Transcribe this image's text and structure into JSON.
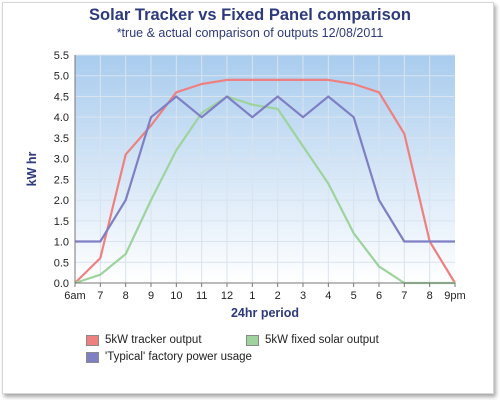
{
  "chart_data": {
    "type": "line",
    "title": "Solar Tracker vs Fixed Panel comparison",
    "subtitle": "*true & actual comparison of outputs 12/08/2011",
    "xlabel": "24hr period",
    "ylabel": "kW hr",
    "categories": [
      "6am",
      "7",
      "8",
      "9",
      "10",
      "11",
      "12",
      "1",
      "2",
      "3",
      "4",
      "5",
      "6",
      "7",
      "8",
      "9pm"
    ],
    "ylim": [
      0,
      5.5
    ],
    "yticks": [
      "0.0",
      "0.5",
      "1.0",
      "1.5",
      "2.0",
      "2.5",
      "3.0",
      "3.5",
      "4.0",
      "4.5",
      "5.0",
      "5.5"
    ],
    "grid": true,
    "legend_position": "bottom",
    "series": [
      {
        "name": "5kW tracker output",
        "color": "#ef8080",
        "values": [
          0.0,
          0.6,
          3.1,
          3.8,
          4.6,
          4.8,
          4.9,
          4.9,
          4.9,
          4.9,
          4.9,
          4.8,
          4.6,
          3.6,
          1.0,
          0.0
        ]
      },
      {
        "name": "5kW fixed solar output",
        "color": "#9ed39e",
        "values": [
          0.0,
          0.2,
          0.7,
          2.0,
          3.2,
          4.1,
          4.5,
          4.3,
          4.2,
          3.3,
          2.4,
          1.2,
          0.4,
          0.0,
          0.0,
          0.0
        ]
      },
      {
        "name": "'Typical' factory power usage",
        "color": "#7f7fc4",
        "values": [
          1.0,
          1.0,
          2.0,
          4.0,
          4.5,
          4.0,
          4.5,
          4.0,
          4.5,
          4.0,
          4.5,
          4.0,
          2.0,
          1.0,
          1.0,
          1.0
        ]
      }
    ]
  }
}
